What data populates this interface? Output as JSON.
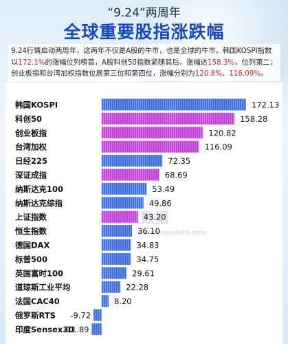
{
  "chart_data": {
    "type": "bar",
    "orientation": "horizontal",
    "subtitle": "“9.24”两周年",
    "title": "全球重要股指涨跌幅",
    "description": [
      {
        "text": "9.24行情启动两周年，这两年不仅是A股的牛市，也是全球的牛市。韩国KOSPI指数以",
        "highlight": false
      },
      {
        "text": "172.1%",
        "highlight": true
      },
      {
        "text": "的涨幅位列榜首，A股科创50指数紧随其后，涨幅达",
        "highlight": false
      },
      {
        "text": "158.3%",
        "highlight": true
      },
      {
        "text": "，位列第二；创业板指和台湾加权指数位居第三位和第四位，涨幅分别为",
        "highlight": false
      },
      {
        "text": "120.8%",
        "highlight": true
      },
      {
        "text": "、",
        "highlight": false
      },
      {
        "text": "116.09%",
        "highlight": true
      },
      {
        "text": "。",
        "highlight": false
      }
    ],
    "categories": [
      "韩国KOSPI",
      "科创50",
      "创业板指",
      "台湾加权",
      "日经225",
      "深证成指",
      "纳斯达克100",
      "纳斯达克综指",
      "上证指数",
      "恒生指数",
      "德国DAX",
      "标普500",
      "英国富时100",
      "道琼斯工业平均",
      "法国CAC40",
      "俄罗斯RTS",
      "印度Sensex30"
    ],
    "values": [
      172.13,
      158.28,
      120.82,
      116.09,
      72.35,
      68.69,
      53.49,
      49.86,
      43.2,
      36.1,
      34.83,
      34.75,
      29.61,
      22.28,
      8.2,
      -9.72,
      -11.89
    ],
    "value_labels": [
      "172.13",
      "158.28",
      "120.82",
      "116.09",
      "72.35",
      "68.69",
      "53.49",
      "49.86",
      "43.20",
      "36.10",
      "34.83",
      "34.75",
      "29.61",
      "22.28",
      "8.20",
      "-9.72",
      "-11.89"
    ],
    "colors": [
      "#3d6fe3",
      "#c23fd9",
      "#c23fd9",
      "#c23fd9",
      "#3d6fe3",
      "#c23fd9",
      "#3d6fe3",
      "#3d6fe3",
      "#c23fd9",
      "#3d6fe3",
      "#3d6fe3",
      "#3d6fe3",
      "#3d6fe3",
      "#3d6fe3",
      "#3d6fe3",
      "#3d6fe3",
      "#3d6fe3"
    ],
    "watermark": "格股大数据",
    "watermark_url": "www.gogudata.com"
  }
}
